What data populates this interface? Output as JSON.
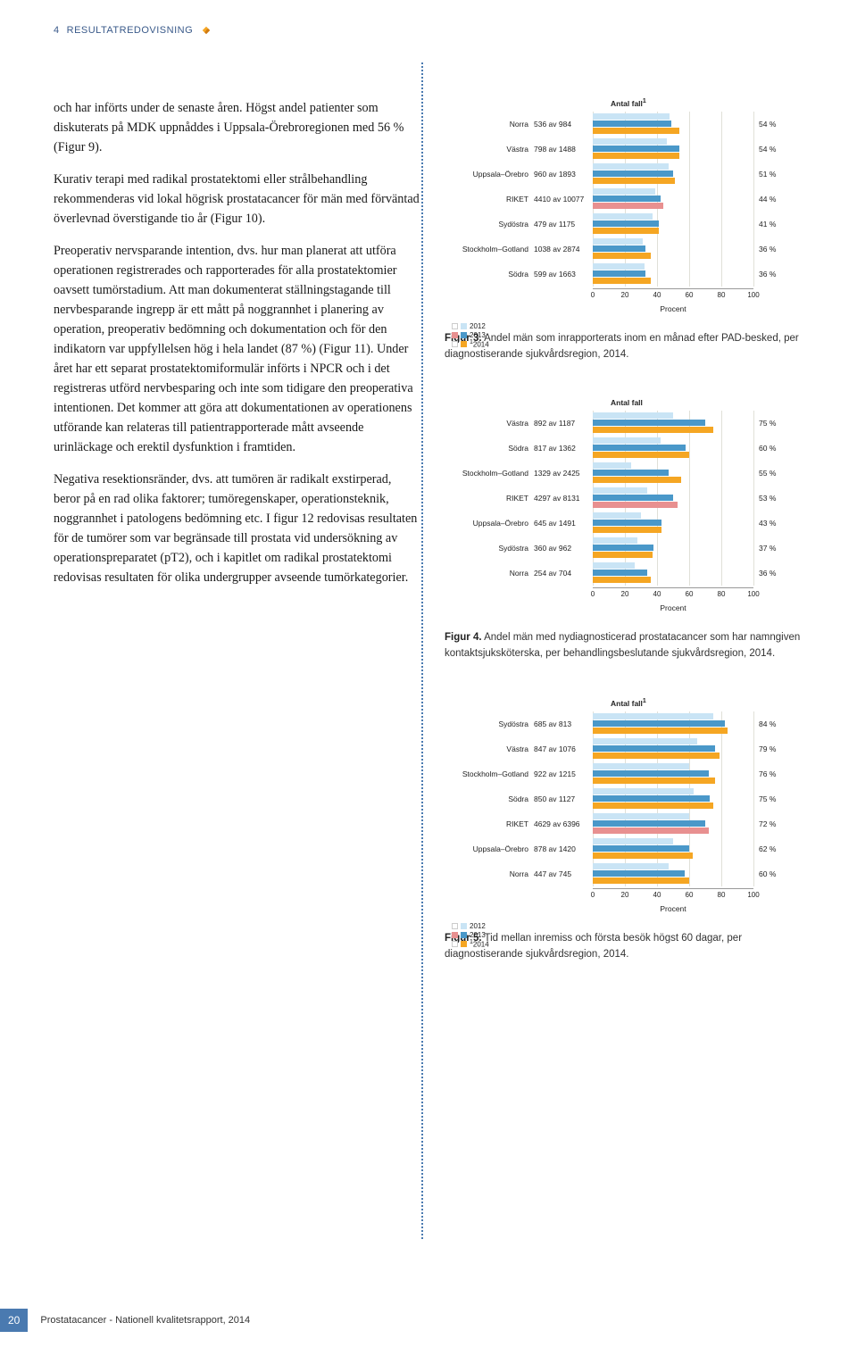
{
  "page_header": {
    "num": "4",
    "title": "RESULTATREDOVISNING"
  },
  "paragraphs": [
    "och har införts under de senaste åren. Högst andel patienter som diskuterats på MDK uppnåddes i Uppsala-Örebroregionen med 56 % (Figur 9).",
    "Kurativ terapi med radikal prostatektomi eller strålbehandling rekommenderas vid lokal högrisk prostatacancer för män med förväntad överlevnad överstigande tio år (Figur 10).",
    "Preoperativ nervsparande intention, dvs. hur man planerat att utföra operationen registrerades och rapporterades för alla prostatektomier oavsett tumörstadium. Att man dokumenterat ställningstagande till nervbesparande ingrepp är ett mått på noggrannhet i planering av operation, preoperativ bedömning och dokumentation och för den indikatorn var uppfyllelsen hög i hela landet (87 %) (Figur 11). Under året har ett separat prostatektomiformulär införts i NPCR och i det registreras utförd nervbesparing och inte som tidigare den preoperativa intentionen. Det kommer att göra att dokumentationen av operationens utförande kan relateras till patientrapporterade mått avseende urinläckage och erektil dysfunktion i framtiden.",
    "Negativa resektionsränder, dvs. att tumören är radikalt exstirperad, beror på en rad olika faktorer; tumöregenskaper, operationsteknik, noggrannhet i patologens bedömning etc. I figur 12 redovisas resultaten för de tumörer som var begränsade till prostata vid undersökning av operationspreparatet (pT2), och i kapitlet om radikal prostatektomi redovisas resultaten för olika undergrupper avseende tumörkategorier."
  ],
  "chart_common": {
    "header": "Antal fall",
    "header_sup": "1",
    "axis_label": "Procent",
    "ticks": [
      0,
      20,
      40,
      60,
      80,
      100
    ],
    "legend": {
      "y2012": "2012",
      "y2013": "2013",
      "y2014_sup": "1",
      "y2014": "2014"
    },
    "colors": {
      "y2012": "#c9e4f5",
      "y2013": "#4a98c9",
      "y2014": "#f5a623",
      "riket2014": "#e89090",
      "grid": "#e0e0d8",
      "bg": "#fff"
    }
  },
  "figure3": {
    "has_legend": true,
    "header_sup": true,
    "rows": [
      {
        "cat": "Norra",
        "count": "536 av 984",
        "pct": "54 %",
        "v12": 48,
        "v13": 49,
        "v14": 54,
        "riket": false
      },
      {
        "cat": "Västra",
        "count": "798 av 1488",
        "pct": "54 %",
        "v12": 46,
        "v13": 54,
        "v14": 54,
        "riket": false
      },
      {
        "cat": "Uppsala–Örebro",
        "count": "960 av 1893",
        "pct": "51 %",
        "v12": 47,
        "v13": 50,
        "v14": 51,
        "riket": false
      },
      {
        "cat": "RIKET",
        "count": "4410 av 10077",
        "pct": "44 %",
        "v12": 39,
        "v13": 42,
        "v14": 44,
        "riket": true
      },
      {
        "cat": "Sydöstra",
        "count": "479 av 1175",
        "pct": "41 %",
        "v12": 37,
        "v13": 41,
        "v14": 41,
        "riket": false
      },
      {
        "cat": "Stockholm–Gotland",
        "count": "1038 av 2874",
        "pct": "36 %",
        "v12": 31,
        "v13": 33,
        "v14": 36,
        "riket": false
      },
      {
        "cat": "Södra",
        "count": "599 av 1663",
        "pct": "36 %",
        "v12": 32,
        "v13": 33,
        "v14": 36,
        "riket": false
      }
    ],
    "caption_b": "Figur 3.",
    "caption": " Andel män som inrapporterats inom en månad efter PAD-besked, per diagnostiserande sjukvårdsregion, 2014."
  },
  "figure4": {
    "has_legend": false,
    "header_sup": false,
    "rows": [
      {
        "cat": "Västra",
        "count": "892 av 1187",
        "pct": "75 %",
        "v12": 50,
        "v13": 70,
        "v14": 75,
        "riket": false
      },
      {
        "cat": "Södra",
        "count": "817 av 1362",
        "pct": "60 %",
        "v12": 42,
        "v13": 58,
        "v14": 60,
        "riket": false
      },
      {
        "cat": "Stockholm–Gotland",
        "count": "1329 av 2425",
        "pct": "55 %",
        "v12": 24,
        "v13": 47,
        "v14": 55,
        "riket": false
      },
      {
        "cat": "RIKET",
        "count": "4297 av 8131",
        "pct": "53 %",
        "v12": 34,
        "v13": 50,
        "v14": 53,
        "riket": true
      },
      {
        "cat": "Uppsala–Örebro",
        "count": "645 av 1491",
        "pct": "43 %",
        "v12": 30,
        "v13": 43,
        "v14": 43,
        "riket": false
      },
      {
        "cat": "Sydöstra",
        "count": "360 av 962",
        "pct": "37 %",
        "v12": 28,
        "v13": 38,
        "v14": 37,
        "riket": false
      },
      {
        "cat": "Norra",
        "count": "254 av 704",
        "pct": "36 %",
        "v12": 26,
        "v13": 34,
        "v14": 36,
        "riket": false
      }
    ],
    "caption_b": "Figur 4.",
    "caption": " Andel män med nydiagnosticerad prostatacancer som har namngiven kontaktsjuksköterska, per behandlingsbeslutande sjukvårdsregion, 2014."
  },
  "figure5": {
    "has_legend": true,
    "header_sup": true,
    "rows": [
      {
        "cat": "Sydöstra",
        "count": "685 av 813",
        "pct": "84 %",
        "v12": 75,
        "v13": 82,
        "v14": 84,
        "riket": false
      },
      {
        "cat": "Västra",
        "count": "847 av 1076",
        "pct": "79 %",
        "v12": 65,
        "v13": 76,
        "v14": 79,
        "riket": false
      },
      {
        "cat": "Stockholm–Gotland",
        "count": "922 av 1215",
        "pct": "76 %",
        "v12": 60,
        "v13": 72,
        "v14": 76,
        "riket": false
      },
      {
        "cat": "Södra",
        "count": "850 av 1127",
        "pct": "75 %",
        "v12": 63,
        "v13": 73,
        "v14": 75,
        "riket": false
      },
      {
        "cat": "RIKET",
        "count": "4629 av 6396",
        "pct": "72 %",
        "v12": 60,
        "v13": 70,
        "v14": 72,
        "riket": true
      },
      {
        "cat": "Uppsala–Örebro",
        "count": "878 av 1420",
        "pct": "62 %",
        "v12": 50,
        "v13": 60,
        "v14": 62,
        "riket": false
      },
      {
        "cat": "Norra",
        "count": "447 av 745",
        "pct": "60 %",
        "v12": 47,
        "v13": 57,
        "v14": 60,
        "riket": false
      }
    ],
    "caption_b": "Figur 5.",
    "caption": " Tid mellan inremiss och första besök högst 60 dagar, per diagnostiserande sjukvårdsregion, 2014."
  },
  "footer": {
    "page_num": "20",
    "text": "Prostatacancer - Nationell kvalitetsrapport, 2014"
  }
}
